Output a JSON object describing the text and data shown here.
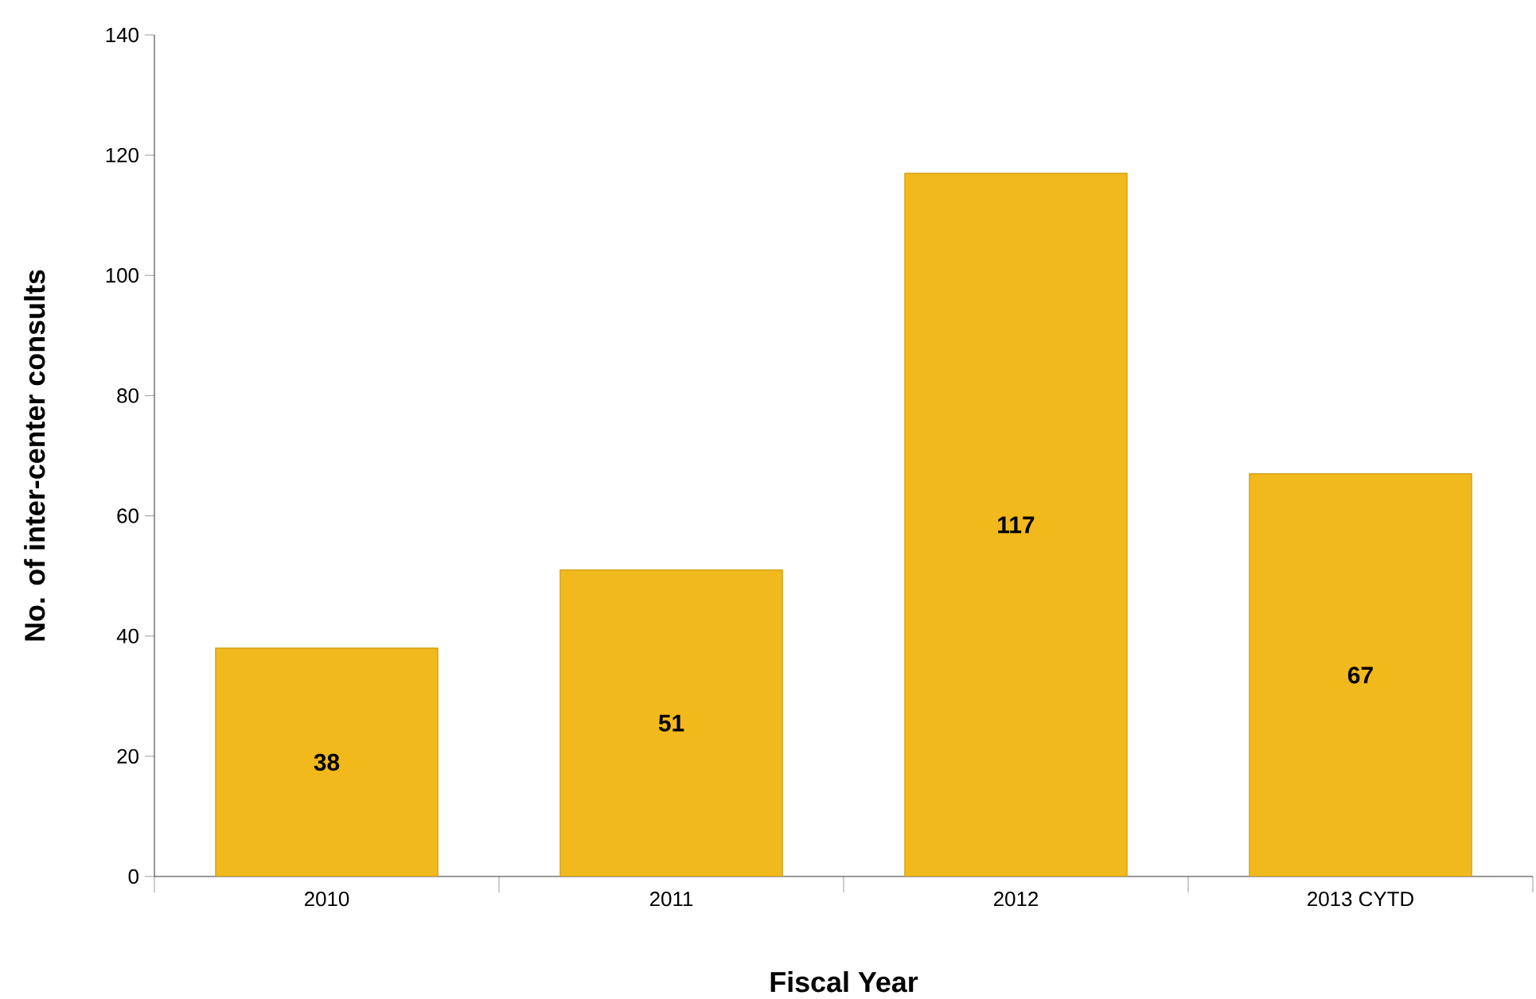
{
  "chart_data": {
    "type": "bar",
    "xlabel": "Fiscal Year",
    "ylabel": "No. of inter-center consults",
    "categories": [
      "2010",
      "2011",
      "2012",
      "2013 CYTD"
    ],
    "values": [
      38,
      51,
      117,
      67
    ],
    "color": "#f2b91c",
    "ylim": [
      0,
      140
    ],
    "yticks": [
      0,
      20,
      40,
      60,
      80,
      100,
      120,
      140
    ],
    "data_labels": true
  }
}
